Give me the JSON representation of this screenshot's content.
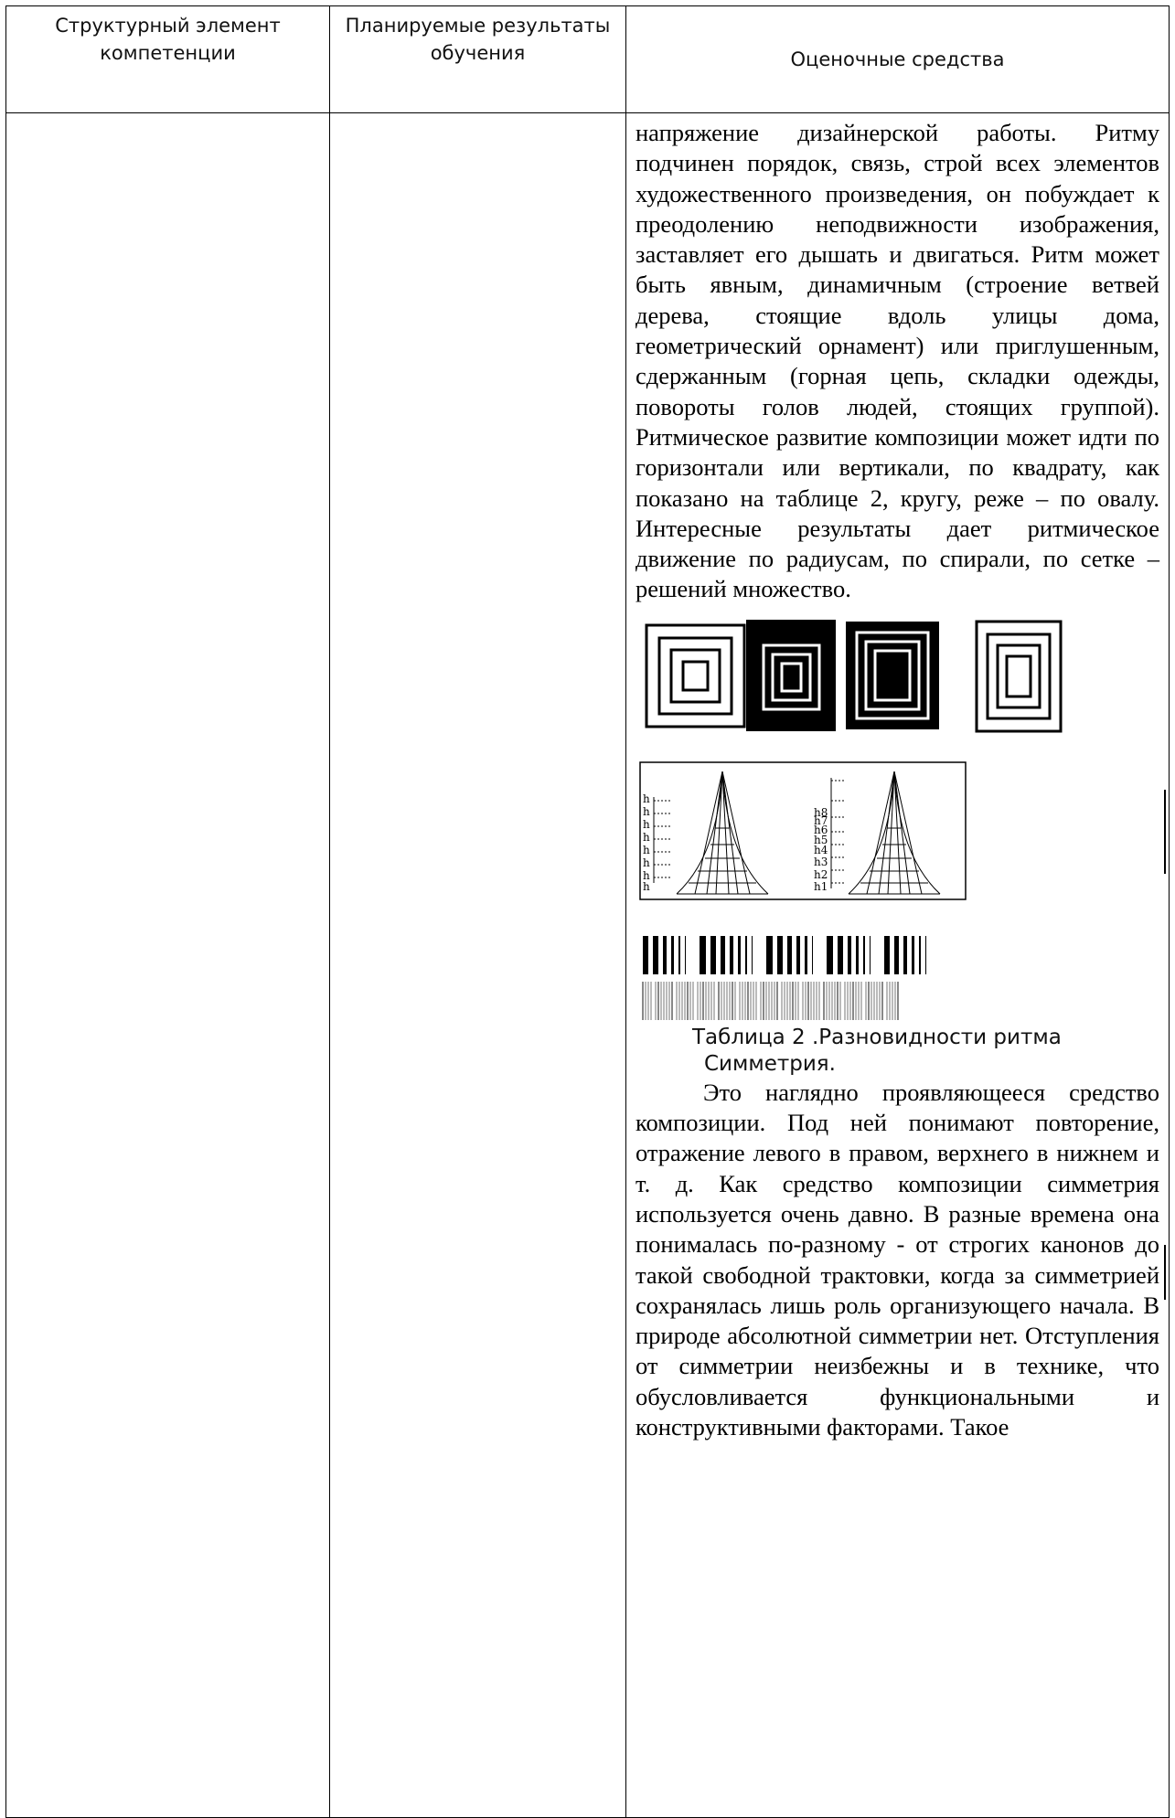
{
  "table": {
    "headers": [
      "Структурный элемент компетенции",
      "Планируемые результаты обучения",
      "Оценочные средства"
    ]
  },
  "content": {
    "paragraph1": "напряжение дизайнерской работы. Ритму подчинен порядок, связь, строй всех элементов художественного произведения, он побуждает к преодолению неподвижности изображения, заставляет его дышать и двигаться. Ритм может быть явным, динамичным (строение ветвей дерева, стоящие вдоль улицы дома, геометрический орнамент) или приглушенным, сдержанным (горная цепь, складки одежды, повороты голов людей, стоящих группой). Ритмическое развитие композиции может идти по горизонтали или вертикали, по квадрату, как показано на таблице 2, кругу, реже – по овалу. Интересные результаты дает ритмическое движение по радиусам, по спирали, по сетке – решений множество.",
    "figure": {
      "left_labels": [
        "h",
        "h",
        "h",
        "h",
        "h",
        "h",
        "h",
        "h"
      ],
      "right_labels": [
        "h8",
        "h7",
        "h6",
        "h5",
        "h4",
        "h3",
        "h2",
        "h1"
      ]
    },
    "caption": "Таблица 2 .Разновидности ритма",
    "subheading": "Симметрия.",
    "paragraph2": "Это наглядно проявляющееся средство композиции. Под ней понимают повторение, отражение левого в правом, верхнего в нижнем и т. д. Как средство композиции симметрия используется очень давно. В разные времена она понималась по-разному - от строгих канонов до такой свободной трактовки, когда за симметрией сохранялась лишь роль организующего начала. В природе абсолютной симметрии нет. Отступления от симметрии неизбежны и в технике, что обусловливается функциональными и конструктивными факторами. Такое"
  }
}
